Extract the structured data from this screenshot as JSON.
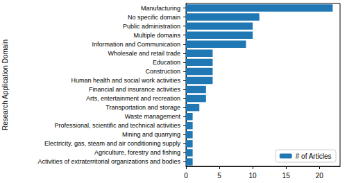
{
  "chart_data": {
    "type": "bar",
    "orientation": "horizontal",
    "y_label": "Research Application Domain",
    "categories": [
      "Manufacturing",
      "No specific domain",
      "Public administration",
      "Multiple domains",
      "Information and Communication",
      "Wholesale and retail trade",
      "Education",
      "Construction",
      "Human health and social work activities",
      "Financial and insurance activities",
      "Arts, entertainment and recreation",
      "Transportation and storage",
      "Waste management",
      "Professional, scientific and technical activities",
      "Mining and quarrying",
      "Electricity, gas, steam and air conditioning supply",
      "Agriculture, forestry and fishing",
      "Activities of extraterritorial organizations and bodies"
    ],
    "series": [
      {
        "name": "# of Articles",
        "color": "#1f77b4",
        "values": [
          22,
          11,
          10,
          10,
          9,
          4,
          4,
          4,
          4,
          3,
          3,
          2,
          1,
          1,
          1,
          1,
          1,
          1
        ]
      }
    ],
    "xlim": [
      0,
      23.1
    ],
    "xticks": [
      0,
      5,
      10,
      15,
      20
    ],
    "legend": "lower right",
    "grid": false
  }
}
